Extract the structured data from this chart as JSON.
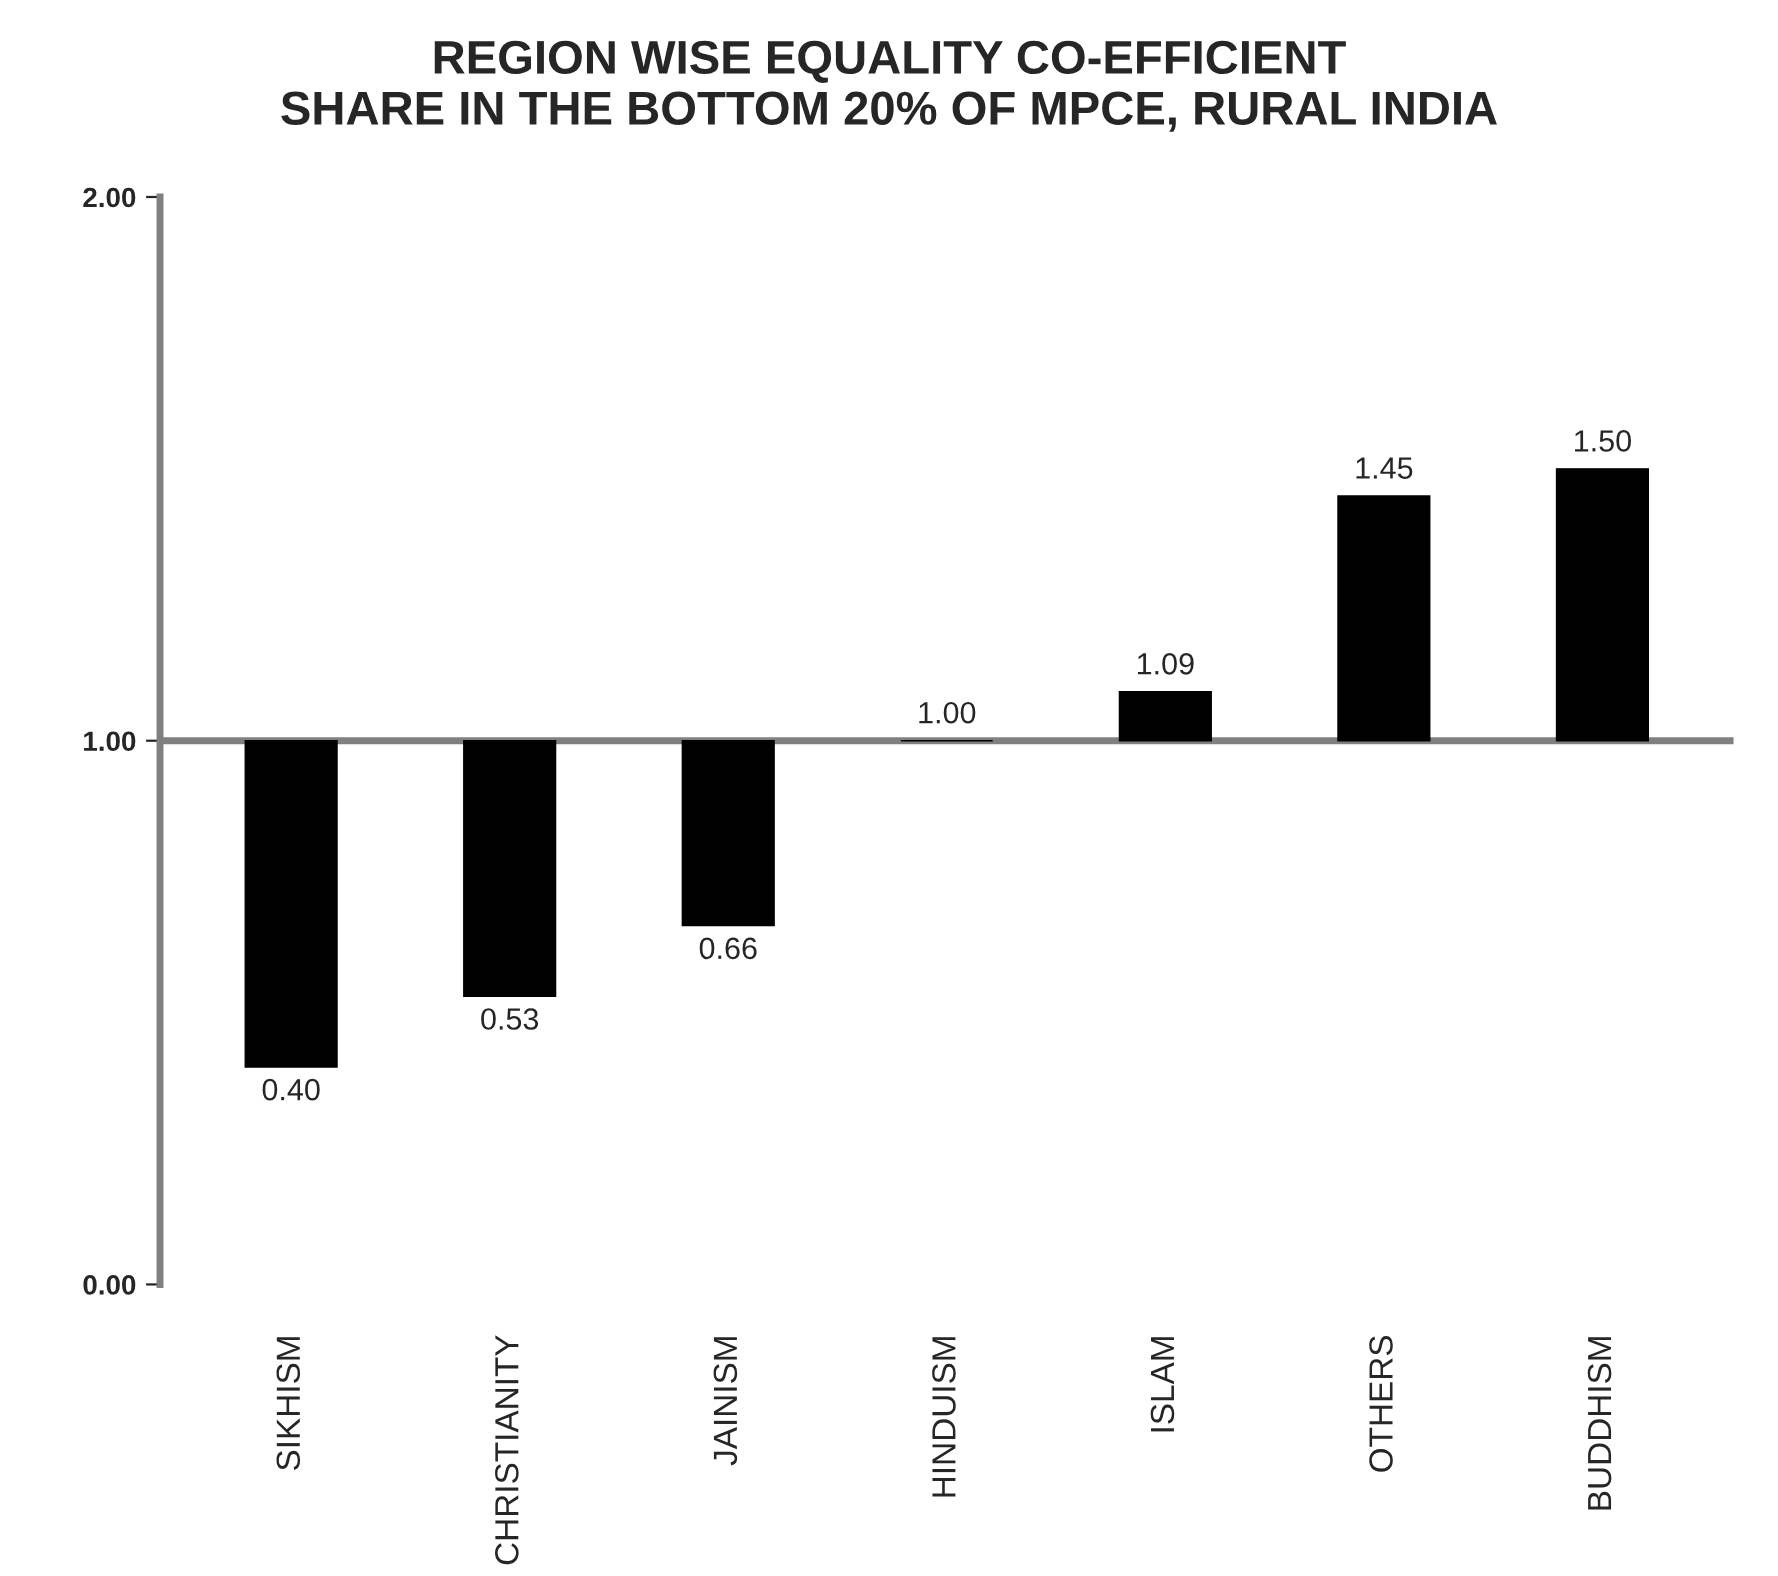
{
  "chart_data": {
    "type": "bar",
    "title": "REGION WISE EQUALITY CO-EFFICIENT\nSHARE IN THE BOTTOM 20% OF MPCE, RURAL INDIA",
    "categories": [
      "SIKHISM",
      "CHRISTIANITY",
      "JAINISM",
      "HINDUISM",
      "ISLAM",
      "OTHERS",
      "BUDDHISM"
    ],
    "base": [
      1,
      1,
      1,
      1,
      1,
      1,
      1
    ],
    "values": [
      -0.6,
      -0.47,
      -0.34,
      0,
      0.09,
      0.45,
      0.5
    ],
    "value_labels": [
      "0.40",
      "0.53",
      "0.66",
      "1.00",
      "1.09",
      "1.45",
      "1.50"
    ],
    "color": "#000000",
    "ylim": [
      0,
      2
    ],
    "yticks": [
      {
        "value": 0,
        "label": "0.00"
      },
      {
        "value": 1,
        "label": "1.00"
      },
      {
        "value": 2,
        "label": "2.00"
      }
    ],
    "ref_lines": [
      {
        "axis": "y",
        "value": 1,
        "color": "#808080"
      }
    ],
    "grid": false,
    "legend": false
  }
}
